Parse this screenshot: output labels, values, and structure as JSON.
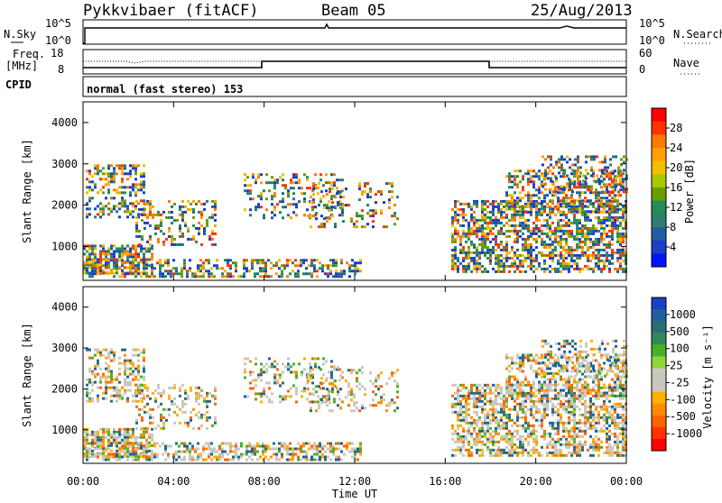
{
  "header": {
    "station": "Pykkvibaer (fitACF)",
    "beam": "Beam 05",
    "date": "25/Aug/2013"
  },
  "nsky_panel": {
    "left_label": "N.Sky",
    "right_label": "N.Search",
    "ticks_left": [
      "10^5",
      "10^0"
    ],
    "ticks_right": [
      "10^5",
      "10^0"
    ]
  },
  "freq_panel": {
    "left_label_1": "Freq.",
    "left_label_2": "[MHz]",
    "cpid_label": "CPID",
    "right_label": "Nave",
    "ticks_left": [
      "18",
      "8"
    ],
    "ticks_right": [
      "60",
      "0"
    ]
  },
  "cpid_panel": {
    "text": "normal (fast stereo) 153"
  },
  "time_axis": {
    "label": "Time UT",
    "ticks": [
      "00:00",
      "04:00",
      "08:00",
      "12:00",
      "16:00",
      "20:00",
      "00:00"
    ]
  },
  "chart_data": [
    {
      "type": "heatmap",
      "name": "Power",
      "ylabel": "Slant Range [km]",
      "y_ticks": [
        "4000",
        "3000",
        "2000",
        "1000"
      ],
      "ylim": [
        180,
        4500
      ],
      "colorbar_label": "Power [dB]",
      "colorbar_ticks": [
        "28",
        "24",
        "20",
        "16",
        "12",
        "8",
        "4"
      ],
      "colors": [
        "#ff0000",
        "#ff3200",
        "#ff7800",
        "#ffa000",
        "#f0c000",
        "#a8c800",
        "#66a000",
        "#228b57",
        "#2f7e6f",
        "#1f5fa0",
        "#1a3fc8",
        "#0014ff"
      ]
    },
    {
      "type": "heatmap",
      "name": "Velocity",
      "ylabel": "Slant Range [km]",
      "y_ticks": [
        "4000",
        "3000",
        "2000",
        "1000"
      ],
      "ylim": [
        180,
        4500
      ],
      "colorbar_label": "Velocity [m s⁻¹]",
      "colorbar_ticks": [
        "1000",
        "500",
        "100",
        "25",
        "-25",
        "-100",
        "-500",
        "-1000"
      ],
      "colors": [
        "#1a3fc8",
        "#1f5fa0",
        "#2e6c78",
        "#2f8a5a",
        "#4caf2a",
        "#8fd43a",
        "#c8c8c0",
        "#c8c8c0",
        "#ffb000",
        "#ff8c00",
        "#ff6400",
        "#ff3200",
        "#ff0000"
      ]
    }
  ]
}
